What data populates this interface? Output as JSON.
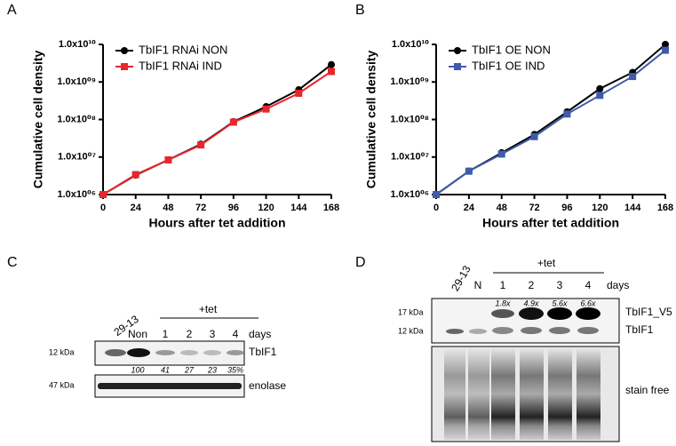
{
  "chart_data": [
    {
      "type": "line",
      "panel": "A",
      "xlabel": "Hours after tet addition",
      "ylabel": "Cumulative cell density",
      "x": [
        0,
        24,
        48,
        72,
        96,
        120,
        144,
        168
      ],
      "xlim": [
        0,
        168
      ],
      "xticks": [
        0,
        24,
        48,
        72,
        96,
        120,
        144,
        168
      ],
      "yscale": "log",
      "ylim": [
        1000000,
        10000000000
      ],
      "yticks": [
        {
          "value": 1000000,
          "label": "1.0x10⁰⁶"
        },
        {
          "value": 10000000,
          "label": "1.0x10⁰⁷"
        },
        {
          "value": 100000000,
          "label": "1.0x10⁰⁸"
        },
        {
          "value": 1000000000,
          "label": "1.0x10⁰⁹"
        },
        {
          "value": 10000000000,
          "label": "1.0x10¹⁰"
        }
      ],
      "legend": "upper left",
      "series": [
        {
          "name": "TbIF1 RNAi NON",
          "color": "#000000",
          "marker": "circle",
          "values": [
            1000000,
            3300000,
            8400000,
            22000000,
            87000000,
            220000000,
            620000000,
            2900000000
          ]
        },
        {
          "name": "TbIF1 RNAi IND",
          "color": "#e8262d",
          "marker": "square",
          "values": [
            1000000,
            3400000,
            8400000,
            21000000,
            85000000,
            190000000,
            500000000,
            1900000000
          ]
        }
      ]
    },
    {
      "type": "line",
      "panel": "B",
      "xlabel": "Hours after tet addition",
      "ylabel": "Cumulative cell density",
      "x": [
        0,
        24,
        48,
        72,
        96,
        120,
        144,
        168
      ],
      "xlim": [
        0,
        168
      ],
      "xticks": [
        0,
        24,
        48,
        72,
        96,
        120,
        144,
        168
      ],
      "yscale": "log",
      "ylim": [
        1000000,
        10000000000
      ],
      "yticks": [
        {
          "value": 1000000,
          "label": "1.0x10⁰⁶"
        },
        {
          "value": 10000000,
          "label": "1.0x10⁰⁷"
        },
        {
          "value": 100000000,
          "label": "1.0x10⁰⁸"
        },
        {
          "value": 1000000000,
          "label": "1.0x10⁰⁹"
        },
        {
          "value": 10000000000,
          "label": "1.0x10¹⁰"
        }
      ],
      "legend": "upper left",
      "series": [
        {
          "name": "TbIF1 OE NON",
          "color": "#000000",
          "marker": "circle",
          "values": [
            1000000,
            4200000,
            13000000,
            40000000,
            160000000,
            660000000,
            1800000000,
            10000000000
          ]
        },
        {
          "name": "TbIF1 OE IND",
          "color": "#3f5ba9",
          "marker": "square",
          "values": [
            1000000,
            4200000,
            12000000,
            35000000,
            140000000,
            440000000,
            1400000000,
            7000000000
          ]
        }
      ]
    }
  ],
  "blots": [
    {
      "panel": "C",
      "lanes": [
        "29-13",
        "Non",
        "1",
        "2",
        "3",
        "4"
      ],
      "days": "days",
      "treatment": "+tet",
      "markers": [
        "12 kDa",
        "47 kDa"
      ],
      "bands": [
        "TbIF1",
        "enolase"
      ],
      "quantification": [
        "100",
        "41",
        "27",
        "23",
        "35%"
      ]
    },
    {
      "panel": "D",
      "lanes": [
        "29-13",
        "N",
        "1",
        "2",
        "3",
        "4"
      ],
      "days": "days",
      "treatment": "+tet",
      "markers": [
        "17 kDa",
        "12 kDa"
      ],
      "bands": [
        "TbIF1_V5",
        "TbIF1",
        "stain free"
      ],
      "quantification": [
        "1.8x",
        "4.9x",
        "5.6x",
        "6.6x"
      ]
    }
  ]
}
